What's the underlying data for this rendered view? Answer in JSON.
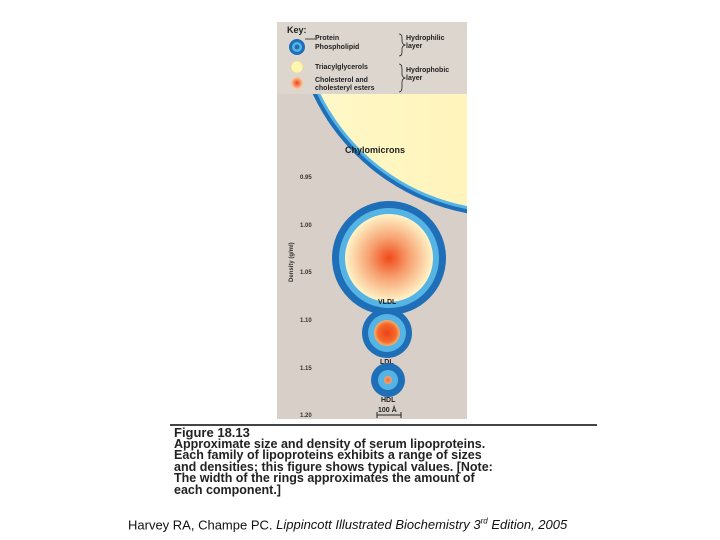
{
  "key": {
    "title": "Key:",
    "protein": "Protein",
    "phospholipid": "Phospholipid",
    "hydrophilic_line1": "Hydrophilic",
    "hydrophilic_line2": "layer",
    "triacylglycerols": "Triacylglycerols",
    "cholesterol_line1": "Cholesterol and",
    "cholesterol_line2": "cholesteryl esters",
    "hydrophobic_line1": "Hydrophobic",
    "hydrophobic_line2": "layer"
  },
  "axis": {
    "label": "Density (g/ml)",
    "ticks": [
      "0.95",
      "1.00",
      "1.05",
      "1.10",
      "1.15",
      "1.20"
    ]
  },
  "particles": {
    "chylomicrons": "Chylomicrons",
    "vldl": "VLDL",
    "ldl": "LDL",
    "hdl": "HDL"
  },
  "scale_bar": "100 Å",
  "caption": {
    "title": "Figure 18.13",
    "line1": "Approximate size and density of serum lipoproteins.",
    "line2": "Each family of lipoproteins exhibits a range of sizes",
    "line3": "and densities; this figure shows typical values. [Note:",
    "line4": "The width of the rings approximates the amount of",
    "line5": "each component.]"
  },
  "citation": {
    "authors": "Harvey RA, Champe PC. ",
    "book": "Lippincott Illustrated Biochemistry 3",
    "sup": "rd",
    "edition": " Edition, 2005"
  },
  "colors": {
    "panel_bg": "#d8d0c8",
    "protein_ring": "#1f6fb8",
    "phospholipid_ring": "#55b4e4",
    "triacylglycerol": "#fff6b0",
    "cholesterol": "#f05a1e"
  }
}
